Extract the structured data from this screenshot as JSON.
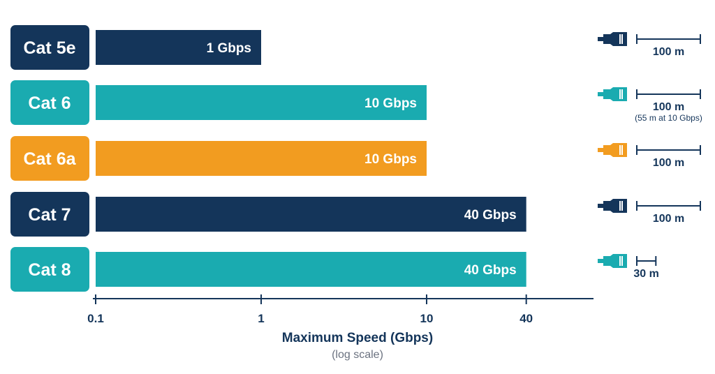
{
  "colors": {
    "navy": "#14355a",
    "teal": "#1aabb0",
    "orange": "#f29c20",
    "axis": "#14355a",
    "subtext": "#6b7280"
  },
  "chart_data": {
    "type": "bar",
    "orientation": "horizontal",
    "x_scale": "log",
    "xlim": [
      0.1,
      60
    ],
    "xlabel": "Maximum Speed (Gbps)",
    "xlabel_note": "(log scale)",
    "x_ticks": [
      {
        "value": 0.1,
        "label": "0.1"
      },
      {
        "value": 1,
        "label": "1"
      },
      {
        "value": 10,
        "label": "10"
      },
      {
        "value": 40,
        "label": "40"
      }
    ],
    "categories": [
      "Cat 5e",
      "Cat 6",
      "Cat 6a",
      "Cat 7",
      "Cat 8"
    ],
    "values": [
      1,
      10,
      10,
      40,
      40
    ],
    "bar_labels": [
      "1 Gbps",
      "10 Gbps",
      "10 Gbps",
      "40 Gbps",
      "40 Gbps"
    ],
    "colors": [
      "navy",
      "teal",
      "orange",
      "navy",
      "teal"
    ],
    "max_distance": [
      {
        "value_m": 100,
        "label": "100 m",
        "note": ""
      },
      {
        "value_m": 100,
        "label": "100 m",
        "note": "(55 m at 10 Gbps)"
      },
      {
        "value_m": 100,
        "label": "100 m",
        "note": ""
      },
      {
        "value_m": 100,
        "label": "100 m",
        "note": ""
      },
      {
        "value_m": 30,
        "label": "30 m",
        "note": ""
      }
    ],
    "icon": "ethernet-plug-icon"
  }
}
